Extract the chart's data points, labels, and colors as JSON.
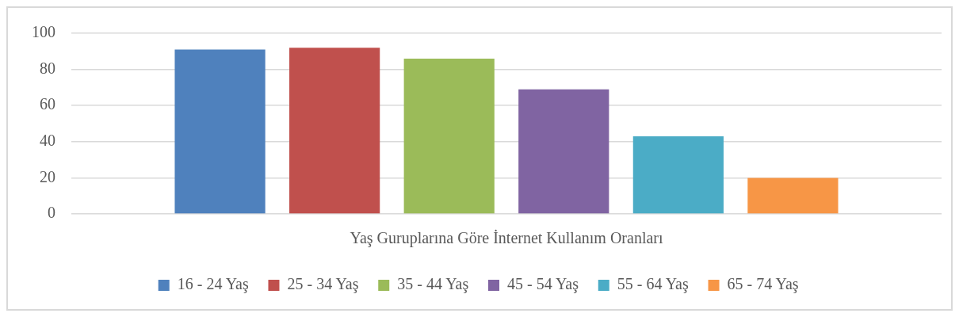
{
  "chart_data": {
    "type": "bar",
    "categories": [
      "Yaş Guruplarına Göre İnternet Kullanım Oranları"
    ],
    "series": [
      {
        "name": "16 - 24 Yaş",
        "color": "#4f81bd",
        "values": [
          91
        ]
      },
      {
        "name": "25 - 34 Yaş",
        "color": "#c0504d",
        "values": [
          92
        ]
      },
      {
        "name": "35 - 44 Yaş",
        "color": "#9bbb59",
        "values": [
          86
        ]
      },
      {
        "name": "45 - 54 Yaş",
        "color": "#8064a2",
        "values": [
          69
        ]
      },
      {
        "name": "55 - 64 Yaş",
        "color": "#4bacc6",
        "values": [
          43
        ]
      },
      {
        "name": "65 - 74 Yaş",
        "color": "#f79646",
        "values": [
          20
        ]
      }
    ],
    "ylim": [
      0,
      100
    ],
    "yticks": [
      0,
      20,
      40,
      60,
      80,
      100
    ],
    "grid": "y",
    "legend": "bottom"
  }
}
